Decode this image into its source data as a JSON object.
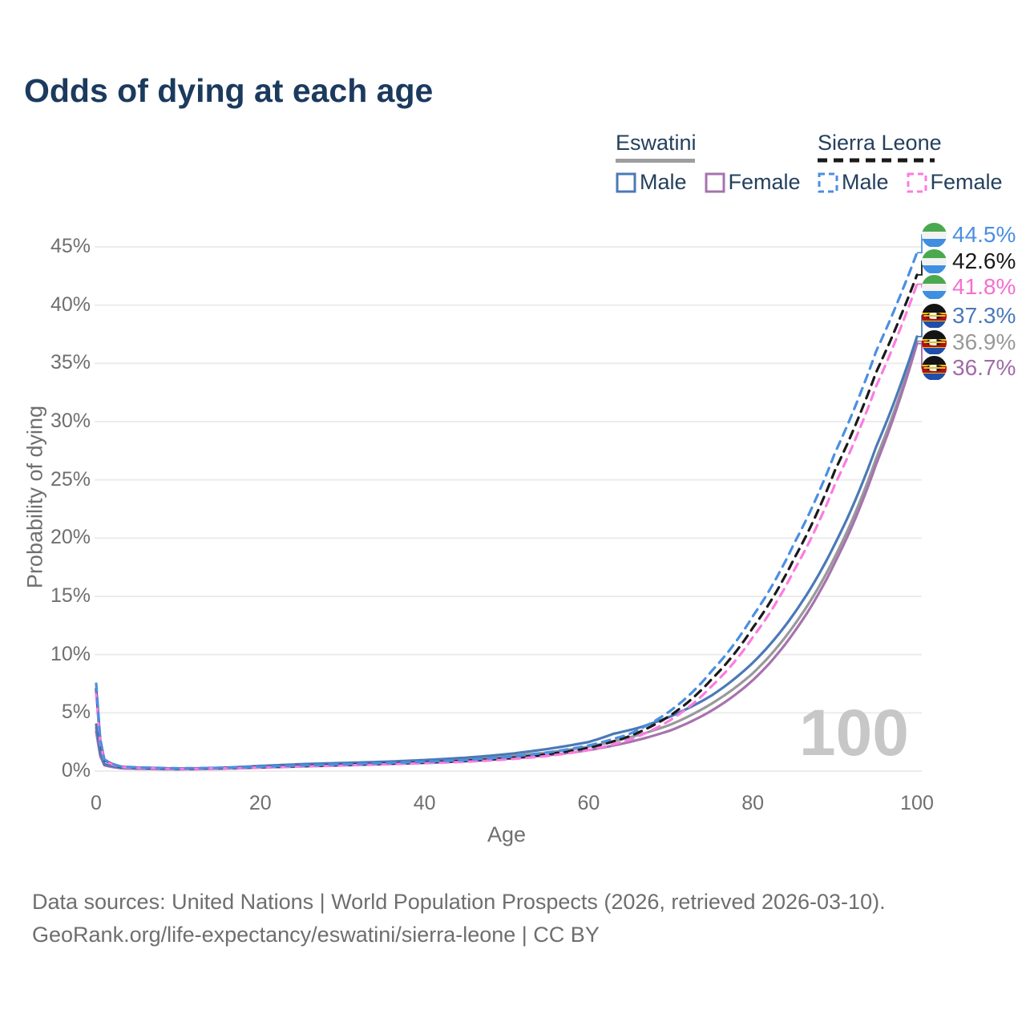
{
  "title": "Odds of dying at each age",
  "legend": {
    "groups": [
      {
        "country": "Eswatini",
        "line_style": "solid",
        "underline_color": "#9e9e9e",
        "male_label": "Male",
        "male_color": "#4b79b7",
        "female_label": "Female",
        "female_color": "#a673ae"
      },
      {
        "country": "Sierra Leone",
        "line_style": "dashed",
        "underline_color": "#1a1a1a",
        "male_label": "Male",
        "male_color": "#4b8fe2",
        "female_label": "Female",
        "female_color": "#fb7ce0"
      }
    ]
  },
  "y_axis": {
    "label": "Probability of dying",
    "ticks": [
      "0%",
      "5%",
      "10%",
      "15%",
      "20%",
      "25%",
      "30%",
      "35%",
      "40%",
      "45%"
    ],
    "min": 0,
    "max": 45
  },
  "x_axis": {
    "label": "Age",
    "ticks": [
      "0",
      "20",
      "40",
      "60",
      "80",
      "100"
    ],
    "min": 0,
    "max": 100
  },
  "end_labels": [
    {
      "label": "44.5%",
      "value": 44.5,
      "color": "#4b8fe2",
      "flag": "sierra-leone",
      "series": "Sierra Leone Male"
    },
    {
      "label": "42.6%",
      "value": 42.6,
      "color": "#1a1a1a",
      "flag": "sierra-leone",
      "series": "Sierra Leone Both sexes"
    },
    {
      "label": "41.8%",
      "value": 41.8,
      "color": "#f470d0",
      "flag": "sierra-leone",
      "series": "Sierra Leone Female"
    },
    {
      "label": "37.3%",
      "value": 37.3,
      "color": "#4b79b7",
      "flag": "eswatini",
      "series": "Eswatini Male"
    },
    {
      "label": "36.9%",
      "value": 36.9,
      "color": "#999999",
      "flag": "eswatini",
      "series": "Eswatini Both sexes"
    },
    {
      "label": "36.7%",
      "value": 36.7,
      "color": "#a06aa8",
      "flag": "eswatini",
      "series": "Eswatini Female"
    }
  ],
  "watermark": "100",
  "footer": {
    "line1": "Data sources: United Nations | World Population Prospects (2026, retrieved 2026-03-10).",
    "line2": "GeoRank.org/life-expectancy/eswatini/sierra-leone | CC BY"
  },
  "chart_data": {
    "type": "line",
    "title": "Odds of dying at each age",
    "xlabel": "Age",
    "ylabel": "Probability of dying",
    "xlim": [
      0,
      100
    ],
    "ylim": [
      0,
      45
    ],
    "grid": "horizontal",
    "legend_position": "top-right",
    "units": "percent",
    "series": [
      {
        "name": "Eswatini Both sexes",
        "color": "#999999",
        "dash": false,
        "points": [
          [
            0,
            3.7
          ],
          [
            1,
            0.55
          ],
          [
            3,
            0.28
          ],
          [
            5,
            0.23
          ],
          [
            10,
            0.18
          ],
          [
            15,
            0.24
          ],
          [
            20,
            0.38
          ],
          [
            25,
            0.5
          ],
          [
            30,
            0.6
          ],
          [
            35,
            0.7
          ],
          [
            40,
            0.82
          ],
          [
            45,
            1.0
          ],
          [
            50,
            1.25
          ],
          [
            55,
            1.6
          ],
          [
            60,
            2.1
          ],
          [
            65,
            2.9
          ],
          [
            70,
            4.0
          ],
          [
            75,
            5.8
          ],
          [
            80,
            8.4
          ],
          [
            85,
            12.5
          ],
          [
            90,
            18.4
          ],
          [
            95,
            26.8
          ],
          [
            100,
            36.9
          ]
        ]
      },
      {
        "name": "Eswatini Female",
        "color": "#a673ae",
        "dash": false,
        "points": [
          [
            0,
            3.4
          ],
          [
            1,
            0.5
          ],
          [
            3,
            0.25
          ],
          [
            5,
            0.2
          ],
          [
            10,
            0.15
          ],
          [
            15,
            0.2
          ],
          [
            20,
            0.3
          ],
          [
            25,
            0.4
          ],
          [
            30,
            0.5
          ],
          [
            35,
            0.6
          ],
          [
            40,
            0.7
          ],
          [
            45,
            0.85
          ],
          [
            50,
            1.05
          ],
          [
            55,
            1.35
          ],
          [
            60,
            1.8
          ],
          [
            65,
            2.5
          ],
          [
            70,
            3.5
          ],
          [
            75,
            5.2
          ],
          [
            80,
            7.8
          ],
          [
            85,
            11.9
          ],
          [
            90,
            17.9
          ],
          [
            95,
            26.3
          ],
          [
            100,
            36.7
          ]
        ]
      },
      {
        "name": "Eswatini Male",
        "color": "#4b79b7",
        "dash": false,
        "points": [
          [
            0,
            4.0
          ],
          [
            1,
            0.6
          ],
          [
            3,
            0.3
          ],
          [
            5,
            0.25
          ],
          [
            10,
            0.2
          ],
          [
            15,
            0.28
          ],
          [
            20,
            0.45
          ],
          [
            25,
            0.6
          ],
          [
            30,
            0.7
          ],
          [
            35,
            0.8
          ],
          [
            40,
            0.95
          ],
          [
            45,
            1.15
          ],
          [
            50,
            1.45
          ],
          [
            55,
            1.9
          ],
          [
            60,
            2.5
          ],
          [
            63,
            3.2
          ],
          [
            66,
            3.7
          ],
          [
            70,
            4.7
          ],
          [
            75,
            6.5
          ],
          [
            80,
            9.3
          ],
          [
            85,
            13.5
          ],
          [
            90,
            19.5
          ],
          [
            95,
            27.8
          ],
          [
            100,
            37.3
          ]
        ]
      },
      {
        "name": "Sierra Leone Both sexes",
        "color": "#1a1a1a",
        "dash": true,
        "points": [
          [
            0,
            7.05
          ],
          [
            1,
            0.95
          ],
          [
            3,
            0.38
          ],
          [
            5,
            0.3
          ],
          [
            10,
            0.22
          ],
          [
            15,
            0.26
          ],
          [
            20,
            0.35
          ],
          [
            25,
            0.44
          ],
          [
            30,
            0.53
          ],
          [
            35,
            0.63
          ],
          [
            40,
            0.74
          ],
          [
            45,
            0.88
          ],
          [
            50,
            1.1
          ],
          [
            55,
            1.45
          ],
          [
            60,
            2.0
          ],
          [
            65,
            3.0
          ],
          [
            70,
            4.8
          ],
          [
            75,
            7.9
          ],
          [
            80,
            12.3
          ],
          [
            85,
            18.2
          ],
          [
            90,
            25.8
          ],
          [
            95,
            34.2
          ],
          [
            100,
            42.6
          ]
        ]
      },
      {
        "name": "Sierra Leone Female",
        "color": "#fb7ce0",
        "dash": true,
        "points": [
          [
            0,
            6.6
          ],
          [
            1,
            0.9
          ],
          [
            3,
            0.36
          ],
          [
            5,
            0.28
          ],
          [
            10,
            0.2
          ],
          [
            15,
            0.24
          ],
          [
            20,
            0.32
          ],
          [
            25,
            0.4
          ],
          [
            30,
            0.48
          ],
          [
            35,
            0.58
          ],
          [
            40,
            0.68
          ],
          [
            45,
            0.8
          ],
          [
            50,
            1.0
          ],
          [
            55,
            1.3
          ],
          [
            60,
            1.8
          ],
          [
            65,
            2.7
          ],
          [
            70,
            4.4
          ],
          [
            75,
            7.3
          ],
          [
            80,
            11.5
          ],
          [
            85,
            17.2
          ],
          [
            90,
            24.6
          ],
          [
            95,
            33.0
          ],
          [
            100,
            41.8
          ]
        ]
      },
      {
        "name": "Sierra Leone Male",
        "color": "#4b8fe2",
        "dash": true,
        "points": [
          [
            0,
            7.5
          ],
          [
            1,
            1.0
          ],
          [
            3,
            0.4
          ],
          [
            5,
            0.32
          ],
          [
            10,
            0.24
          ],
          [
            15,
            0.28
          ],
          [
            20,
            0.38
          ],
          [
            25,
            0.48
          ],
          [
            30,
            0.58
          ],
          [
            35,
            0.68
          ],
          [
            40,
            0.8
          ],
          [
            45,
            0.95
          ],
          [
            50,
            1.2
          ],
          [
            55,
            1.6
          ],
          [
            60,
            2.2
          ],
          [
            65,
            3.2
          ],
          [
            70,
            5.2
          ],
          [
            75,
            8.6
          ],
          [
            80,
            13.3
          ],
          [
            85,
            19.5
          ],
          [
            90,
            27.3
          ],
          [
            95,
            36.0
          ],
          [
            100,
            44.5
          ]
        ]
      }
    ]
  }
}
